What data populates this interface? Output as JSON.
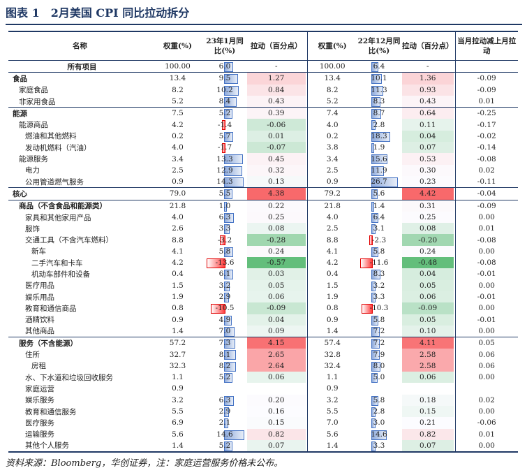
{
  "title": "图表 1　2月美国 CPI 同比拉动拆分",
  "table": {
    "headers": [
      "名称",
      "权重(%)",
      "23年1月同比(%)",
      "拉动（百分点）",
      "权重(%)",
      "22年12月同比(%)",
      "拉动（百分点）",
      "当月拉动减上月拉动"
    ],
    "rows": [
      {
        "name": "所有项目",
        "cells": [
          "100.00",
          "6.0",
          "-",
          "100.00",
          "6.4",
          "-",
          null
        ]
      },
      {
        "name": "食品",
        "cells": [
          "13.4",
          "9.5",
          "1.27",
          "13.4",
          "10.1",
          "1.36",
          "-0.09"
        ]
      },
      {
        "name": "家庭食品",
        "cells": [
          "8.2",
          "10.2",
          "0.84",
          "8.2",
          "11.3",
          "0.93",
          "-0.09"
        ]
      },
      {
        "name": "非家用食品",
        "cells": [
          "5.2",
          "8.4",
          "0.43",
          "5.2",
          "8.3",
          "0.43",
          "0.01"
        ]
      },
      {
        "name": "能源",
        "cells": [
          "7.5",
          "5.2",
          "0.39",
          "7.4",
          "8.7",
          "0.64",
          "-0.25"
        ]
      },
      {
        "name": "能源商品",
        "cells": [
          "4.2",
          "-1.4",
          "-0.06",
          "4.0",
          "2.8",
          "0.11",
          "-0.17"
        ]
      },
      {
        "name": "燃油和其他燃料",
        "cells": [
          "0.2",
          "5.7",
          "0.01",
          "0.2",
          "18.3",
          "0.04",
          "-0.02"
        ]
      },
      {
        "name": "发动机燃料（汽油）",
        "cells": [
          "4.0",
          "-1.7",
          "-0.07",
          "3.8",
          "1.9",
          "0.07",
          "-0.14"
        ]
      },
      {
        "name": "能源服务",
        "cells": [
          "3.4",
          "13.3",
          "0.45",
          "3.4",
          "15.6",
          "0.53",
          "-0.08"
        ]
      },
      {
        "name": "电力",
        "cells": [
          "2.5",
          "12.9",
          "0.32",
          "2.5",
          "11.9",
          "0.30",
          "0.02"
        ]
      },
      {
        "name": "公用管道燃气服务",
        "cells": [
          "0.9",
          "14.3",
          "0.13",
          "0.9",
          "26.7",
          "0.23",
          "-0.11"
        ]
      },
      {
        "name": "核心",
        "cells": [
          "79.0",
          "5.5",
          "4.38",
          "79.2",
          "5.6",
          "4.42",
          "-0.04"
        ]
      },
      {
        "name": "商品（不含食品和能源类）",
        "cells": [
          "21.8",
          "1.0",
          "0.22",
          "21.8",
          "1.4",
          "0.31",
          "-0.09"
        ]
      },
      {
        "name": "家具和其他家用产品",
        "cells": [
          "4.0",
          "6.3",
          "0.25",
          "4.0",
          "6.4",
          "0.25",
          "0.00"
        ]
      },
      {
        "name": "服饰",
        "cells": [
          "2.6",
          "3.3",
          "0.08",
          "2.5",
          "3.1",
          "0.08",
          "0.01"
        ]
      },
      {
        "name": "交通工具（不含汽车燃料）",
        "cells": [
          "8.8",
          "-3.2",
          "-0.28",
          "8.8",
          "-2.3",
          "-0.20",
          "-0.08"
        ]
      },
      {
        "name": "新车",
        "cells": [
          "4.1",
          "5.8",
          "0.24",
          "4.1",
          "5.8",
          "0.24",
          "0.00"
        ]
      },
      {
        "name": "二手汽车和卡车",
        "cells": [
          "4.2",
          "-13.6",
          "-0.57",
          "4.2",
          "-11.6",
          "-0.48",
          "-0.08"
        ]
      },
      {
        "name": "机动车部件和设备",
        "cells": [
          "0.4",
          "6.1",
          "0.03",
          "0.4",
          "8.3",
          "0.04",
          "-0.01"
        ]
      },
      {
        "name": "医疗用品",
        "cells": [
          "1.5",
          "3.2",
          "0.05",
          "1.5",
          "3.2",
          "0.05",
          "0.00"
        ]
      },
      {
        "name": "娱乐用品",
        "cells": [
          "1.9",
          "2.9",
          "0.06",
          "1.9",
          "3.3",
          "0.06",
          "-0.01"
        ]
      },
      {
        "name": "教育和通信商品",
        "cells": [
          "0.8",
          "-10.5",
          "-0.09",
          "0.8",
          "-10.3",
          "-0.09",
          "0.00"
        ]
      },
      {
        "name": "酒精饮料",
        "cells": [
          "0.9",
          "4.9",
          "0.04",
          "0.9",
          "5.8",
          "0.05",
          "-0.01"
        ]
      },
      {
        "name": "其他商品",
        "cells": [
          "1.4",
          "7.0",
          "0.09",
          "1.4",
          "7.2",
          "0.10",
          "0.00"
        ]
      },
      {
        "name": "服务（不含能源）",
        "cells": [
          "57.2",
          "7.3",
          "4.15",
          "57.4",
          "7.2",
          "4.11",
          "0.05"
        ]
      },
      {
        "name": "住所",
        "cells": [
          "32.7",
          "8.1",
          "2.65",
          "32.8",
          "7.9",
          "2.58",
          "0.06"
        ]
      },
      {
        "name": "房租",
        "cells": [
          "32.3",
          "8.2",
          "2.64",
          "32.4",
          "8.0",
          "2.58",
          "0.06"
        ]
      },
      {
        "name": "水、下水道和垃圾回收服务",
        "cells": [
          "1.1",
          "5.2",
          "0.06",
          "1.1",
          "5.0",
          "0.06",
          "0.00"
        ]
      },
      {
        "name": "家庭运营",
        "cells": [
          "0.9",
          null,
          null,
          "0.9",
          null,
          null,
          null
        ]
      },
      {
        "name": "娱乐服务",
        "cells": [
          "3.2",
          "6.3",
          "0.20",
          "3.2",
          "5.8",
          "0.18",
          "0.02"
        ]
      },
      {
        "name": "教育和通信服务",
        "cells": [
          "5.5",
          "2.9",
          "0.16",
          "5.5",
          "2.8",
          "0.15",
          "0.00"
        ]
      },
      {
        "name": "医疗服务",
        "cells": [
          "6.9",
          "2.1",
          "0.15",
          "7.0",
          "3.0",
          "0.21",
          "-0.06"
        ]
      },
      {
        "name": "运输服务",
        "cells": [
          "5.6",
          "14.6",
          "0.82",
          "5.6",
          "14.6",
          "0.82",
          "0.01"
        ]
      },
      {
        "name": "其他个人服务",
        "cells": [
          "1.4",
          "5.2",
          "0.07",
          "1.4",
          "3.3",
          "0.07",
          "0.00"
        ]
      }
    ]
  },
  "source": "资料来源：Bloomberg，华创证券，注：家庭运营服务价格未公布。"
}
